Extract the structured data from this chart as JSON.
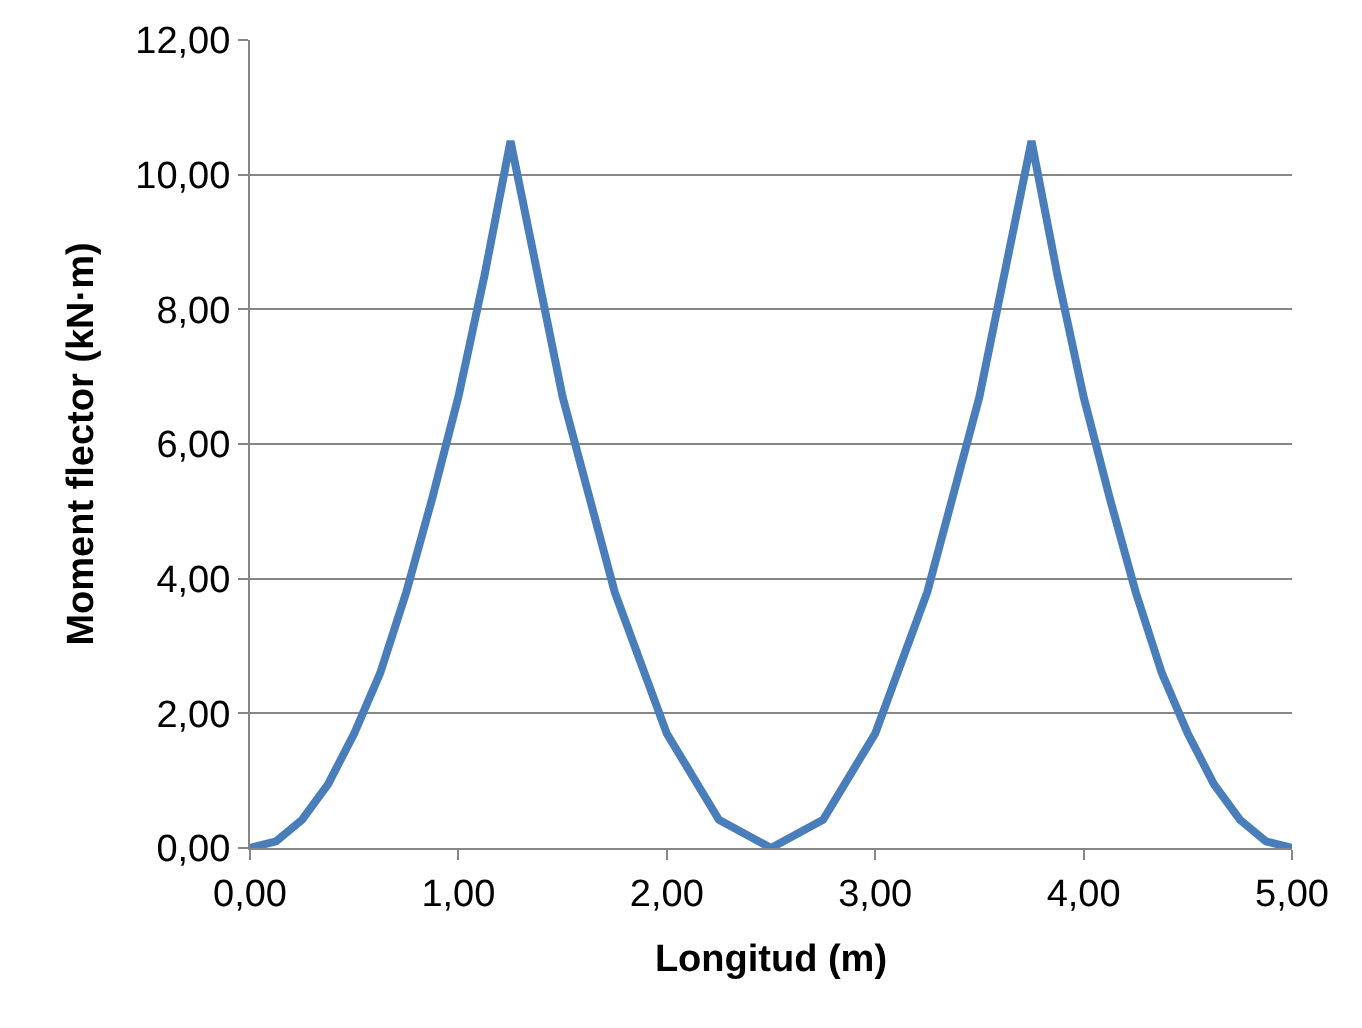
{
  "chart_data": {
    "type": "line",
    "xlabel": "Longitud (m)",
    "ylabel": "Moment flector (kN·m)",
    "x": [
      0,
      0.125,
      0.25,
      0.375,
      0.5,
      0.625,
      0.75,
      0.875,
      1.0,
      1.125,
      1.25,
      1.5,
      1.75,
      2.0,
      2.25,
      2.5,
      2.75,
      3.0,
      3.25,
      3.5,
      3.75,
      3.875,
      4.0,
      4.125,
      4.25,
      4.375,
      4.5,
      4.625,
      4.75,
      4.875,
      5.0
    ],
    "series": [
      {
        "color": "#4a7ebb",
        "values": [
          0,
          0.1,
          0.42,
          0.95,
          1.7,
          2.6,
          3.8,
          5.2,
          6.7,
          8.5,
          10.5,
          6.7,
          3.8,
          1.7,
          0.42,
          0,
          0.42,
          1.7,
          3.8,
          6.7,
          10.5,
          8.5,
          6.7,
          5.2,
          3.8,
          2.6,
          1.7,
          0.95,
          0.42,
          0.1,
          0
        ]
      }
    ],
    "xlim": [
      0,
      5
    ],
    "ylim": [
      0,
      12
    ],
    "xticks": [
      {
        "value": 0,
        "label": "0,00"
      },
      {
        "value": 1,
        "label": "1,00"
      },
      {
        "value": 2,
        "label": "2,00"
      },
      {
        "value": 3,
        "label": "3,00"
      },
      {
        "value": 4,
        "label": "4,00"
      },
      {
        "value": 5,
        "label": "5,00"
      }
    ],
    "yticks": [
      {
        "value": 0,
        "label": "0,00"
      },
      {
        "value": 2,
        "label": "2,00"
      },
      {
        "value": 4,
        "label": "4,00"
      },
      {
        "value": 6,
        "label": "6,00"
      },
      {
        "value": 8,
        "label": "8,00"
      },
      {
        "value": 10,
        "label": "10,00"
      },
      {
        "value": 12,
        "label": "12,00"
      }
    ],
    "grid": "y",
    "marker": "none",
    "line_style": "solid"
  }
}
